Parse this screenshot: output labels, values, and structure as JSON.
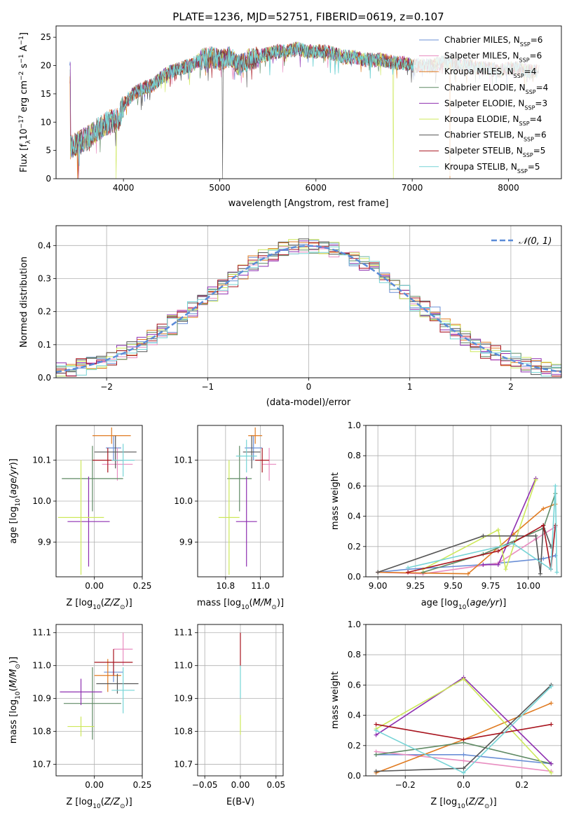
{
  "title": "PLATE=1236, MJD=52751, FIBERID=0619, z=0.107",
  "series": [
    {
      "name": "Chabrier MILES",
      "nssp": "6",
      "color": "#6a8fd6"
    },
    {
      "name": "Salpeter MILES",
      "nssp": "6",
      "color": "#e88cc0"
    },
    {
      "name": "Kroupa MILES",
      "nssp": "4",
      "color": "#e07b22"
    },
    {
      "name": "Chabrier ELODIE",
      "nssp": "4",
      "color": "#5f8a64"
    },
    {
      "name": "Salpeter ELODIE",
      "nssp": "3",
      "color": "#8e2fb0"
    },
    {
      "name": "Kroupa ELODIE",
      "nssp": "4",
      "color": "#cde85a"
    },
    {
      "name": "Chabrier STELIB",
      "nssp": "6",
      "color": "#555555"
    },
    {
      "name": "Salpeter STELIB",
      "nssp": "5",
      "color": "#a8141e"
    },
    {
      "name": "Kroupa STELIB",
      "nssp": "5",
      "color": "#76d4d6"
    }
  ],
  "chart_data": [
    {
      "id": "spectrum",
      "type": "line",
      "xlabel": "wavelength [Angstrom, rest frame]",
      "ylabel": "Flux [f_λ 10^-17 erg cm^-2 s^-1 A^-1]",
      "xlim": [
        3300,
        8550
      ],
      "ylim": [
        0,
        27
      ],
      "xticks": [
        4000,
        5000,
        6000,
        7000,
        8000
      ],
      "yticks": [
        0,
        5,
        10,
        15,
        20,
        25
      ],
      "x": [
        3450,
        3550,
        3650,
        3750,
        3850,
        3950,
        4000,
        4100,
        4200,
        4300,
        4400,
        4500,
        4600,
        4700,
        4800,
        4900,
        5000,
        5100,
        5200,
        5300,
        5400,
        5500,
        5600,
        5700,
        5800,
        5900,
        6000,
        6100,
        6200,
        6300,
        6400,
        6500,
        6600,
        6700,
        6800,
        6900,
        7000,
        7100,
        7200,
        7300,
        7400,
        7500,
        7600,
        7700,
        7800,
        7900,
        8000,
        8100,
        8200,
        8300
      ],
      "y": [
        5.5,
        6.5,
        7.5,
        9,
        10,
        10.5,
        13,
        15,
        16,
        16.5,
        18,
        19,
        19.5,
        20,
        21,
        21.5,
        21,
        21.5,
        20,
        21,
        21.5,
        22,
        22.5,
        22.5,
        23,
        22.5,
        22.5,
        22.5,
        22,
        21.5,
        21.5,
        21,
        21,
        21,
        20.5,
        20.5,
        20,
        20,
        20,
        20.5,
        20.5,
        20,
        20,
        19.5,
        19.5,
        19,
        19.5,
        19.5,
        19,
        19
      ],
      "grid": false,
      "legend": "top-right"
    },
    {
      "id": "residual_hist",
      "type": "bar",
      "xlabel": "(data-model)/error",
      "ylabel": "Normed distribution",
      "xlim": [
        -2.5,
        2.5
      ],
      "ylim": [
        0,
        0.46
      ],
      "xticks": [
        -2,
        -1,
        0,
        1,
        2
      ],
      "yticks": [
        0.0,
        0.1,
        0.2,
        0.3,
        0.4
      ],
      "bin_width": 0.1,
      "bin_start": -2.5,
      "normal_curve": {
        "label": "𝒩(0, 1)",
        "mean": 0,
        "sigma": 1,
        "color": "#5b8bd8"
      },
      "grid": true,
      "legend": "top-right"
    },
    {
      "id": "age_vs_Z",
      "type": "scatter",
      "xlabel": "Z [log10(Z/Z⊙)]",
      "ylabel": "age  [log10(age/yr)]",
      "xlim": [
        -0.2,
        0.25
      ],
      "ylim": [
        9.815,
        10.185
      ],
      "xticks": [
        0.0,
        0.25
      ],
      "yticks": [
        9.9,
        10.0,
        10.1
      ],
      "points": [
        {
          "x": 0.1,
          "y": 10.13,
          "xerr": 0.04,
          "yerr": 0.03
        },
        {
          "x": 0.12,
          "y": 10.09,
          "xerr": 0.08,
          "yerr": 0.04
        },
        {
          "x": 0.09,
          "y": 10.16,
          "xerr": 0.1,
          "yerr": 0.02
        },
        {
          "x": -0.01,
          "y": 10.055,
          "xerr": 0.16,
          "yerr": 0.08
        },
        {
          "x": -0.03,
          "y": 9.95,
          "xerr": 0.11,
          "yerr": 0.11
        },
        {
          "x": -0.07,
          "y": 9.96,
          "xerr": 0.12,
          "yerr": 0.14
        },
        {
          "x": 0.11,
          "y": 10.12,
          "xerr": 0.11,
          "yerr": 0.04
        },
        {
          "x": 0.07,
          "y": 10.1,
          "xerr": 0.08,
          "yerr": 0.03
        },
        {
          "x": 0.15,
          "y": 10.1,
          "xerr": 0.06,
          "yerr": 0.04
        }
      ],
      "grid": true
    },
    {
      "id": "age_vs_mass",
      "type": "scatter",
      "xlabel": "mass [log10(M/M⊙)]",
      "ylabel": "",
      "xlim": [
        10.64,
        11.13
      ],
      "ylim": [
        9.815,
        10.185
      ],
      "xticks": [
        10.8,
        11.0
      ],
      "yticks": [
        9.9,
        10.0,
        10.1
      ],
      "points": [
        {
          "x": 10.96,
          "y": 10.13,
          "xerr": 0.05,
          "yerr": 0.03
        },
        {
          "x": 11.05,
          "y": 10.09,
          "xerr": 0.04,
          "yerr": 0.04
        },
        {
          "x": 10.97,
          "y": 10.16,
          "xerr": 0.04,
          "yerr": 0.02
        },
        {
          "x": 10.88,
          "y": 10.055,
          "xerr": 0.07,
          "yerr": 0.08
        },
        {
          "x": 10.92,
          "y": 9.95,
          "xerr": 0.06,
          "yerr": 0.11
        },
        {
          "x": 10.82,
          "y": 9.96,
          "xerr": 0.06,
          "yerr": 0.14
        },
        {
          "x": 10.95,
          "y": 10.12,
          "xerr": 0.05,
          "yerr": 0.04
        },
        {
          "x": 11.01,
          "y": 10.1,
          "xerr": 0.04,
          "yerr": 0.03
        },
        {
          "x": 10.92,
          "y": 10.11,
          "xerr": 0.06,
          "yerr": 0.04
        }
      ],
      "grid": true
    },
    {
      "id": "weight_vs_age",
      "type": "line",
      "xlabel": "age  [log10(age/yr)]",
      "ylabel": "mass weight",
      "xlim": [
        8.92,
        10.22
      ],
      "ylim": [
        0,
        1
      ],
      "xticks": [
        9.0,
        9.25,
        9.5,
        9.75,
        10.0
      ],
      "yticks": [
        0.0,
        0.2,
        0.4,
        0.6,
        0.8,
        1.0
      ],
      "lines": [
        {
          "x": [
            9.0,
            9.2,
            9.7,
            10.1,
            10.18
          ],
          "y": [
            0.03,
            0.05,
            0.08,
            0.12,
            0.14
          ]
        },
        {
          "x": [
            9.0,
            9.3,
            9.8,
            10.05,
            10.18
          ],
          "y": [
            0.03,
            0.02,
            0.09,
            0.25,
            0.33
          ]
        },
        {
          "x": [
            9.0,
            9.6,
            9.9,
            10.1,
            10.18
          ],
          "y": [
            0.03,
            0.02,
            0.28,
            0.45,
            0.48
          ]
        },
        {
          "x": [
            9.3,
            9.7,
            10.1,
            10.18
          ],
          "y": [
            0.03,
            0.15,
            0.32,
            0.55
          ]
        },
        {
          "x": [
            9.7,
            9.8,
            10.05
          ],
          "y": [
            0.08,
            0.08,
            0.65
          ]
        },
        {
          "x": [
            9.3,
            9.8,
            9.85,
            10.05
          ],
          "y": [
            0.05,
            0.31,
            0.05,
            0.64
          ]
        },
        {
          "x": [
            9.0,
            9.7,
            10.05,
            10.08,
            10.1,
            10.15
          ],
          "y": [
            0.03,
            0.27,
            0.27,
            0.02,
            0.34,
            0.2
          ]
        },
        {
          "x": [
            9.2,
            9.8,
            10.1,
            10.15,
            10.18
          ],
          "y": [
            0.03,
            0.17,
            0.34,
            0.05,
            0.34
          ]
        },
        {
          "x": [
            9.2,
            9.9,
            10.15,
            10.18,
            10.19
          ],
          "y": [
            0.06,
            0.22,
            0.05,
            0.6,
            0.03
          ]
        }
      ],
      "grid": true
    },
    {
      "id": "mass_vs_Z",
      "type": "scatter",
      "xlabel": "Z [log10(Z/Z⊙)]",
      "ylabel": "mass [log10(M/M⊙)]",
      "xlim": [
        -0.2,
        0.25
      ],
      "ylim": [
        10.665,
        11.125
      ],
      "xticks": [
        0.0,
        0.25
      ],
      "yticks": [
        10.7,
        10.8,
        10.9,
        11.0,
        11.1
      ],
      "points": [
        {
          "x": 0.1,
          "y": 10.98,
          "xerr": 0.05,
          "yerr": 0.03
        },
        {
          "x": 0.15,
          "y": 11.05,
          "xerr": 0.05,
          "yerr": 0.05
        },
        {
          "x": 0.07,
          "y": 10.97,
          "xerr": 0.07,
          "yerr": 0.05
        },
        {
          "x": -0.01,
          "y": 10.885,
          "xerr": 0.15,
          "yerr": 0.11
        },
        {
          "x": -0.07,
          "y": 10.92,
          "xerr": 0.11,
          "yerr": 0.04
        },
        {
          "x": -0.07,
          "y": 10.815,
          "xerr": 0.07,
          "yerr": 0.03
        },
        {
          "x": 0.12,
          "y": 10.945,
          "xerr": 0.11,
          "yerr": 0.03
        },
        {
          "x": 0.1,
          "y": 11.01,
          "xerr": 0.1,
          "yerr": 0.04
        },
        {
          "x": 0.15,
          "y": 10.925,
          "xerr": 0.06,
          "yerr": 0.07
        }
      ],
      "grid": true
    },
    {
      "id": "mass_vs_EBV",
      "type": "scatter",
      "xlabel": "E(B-V)",
      "ylabel": "",
      "xlim": [
        -0.06,
        0.06
      ],
      "ylim": [
        10.665,
        11.125
      ],
      "xticks": [
        -0.05,
        0.0,
        0.05
      ],
      "yticks": [
        10.7,
        10.8,
        10.9,
        11.0,
        11.1
      ],
      "points": [
        {
          "x": 0.0,
          "y": 11.05,
          "xerr": 0,
          "yerr": 0.05
        },
        {
          "x": 0.0,
          "y": 10.95,
          "xerr": 0,
          "yerr": 0.05
        },
        {
          "x": 0.0,
          "y": 10.82,
          "xerr": 0,
          "yerr": 0.03
        }
      ],
      "grid": true
    },
    {
      "id": "weight_vs_Z",
      "type": "line",
      "xlabel": "Z [log10(Z/Z⊙)]",
      "ylabel": "mass weight",
      "xlim": [
        -0.335,
        0.335
      ],
      "ylim": [
        0,
        1
      ],
      "xticks": [
        -0.2,
        0.0,
        0.2
      ],
      "yticks": [
        0.0,
        0.2,
        0.4,
        0.6,
        0.8,
        1.0
      ],
      "lines": [
        {
          "x": [
            -0.3,
            0.0,
            0.3
          ],
          "y": [
            0.14,
            0.14,
            0.08
          ]
        },
        {
          "x": [
            -0.3,
            0.0,
            0.3
          ],
          "y": [
            0.16,
            0.1,
            0.03
          ]
        },
        {
          "x": [
            -0.3,
            0.0,
            0.3
          ],
          "y": [
            0.02,
            0.24,
            0.48
          ]
        },
        {
          "x": [
            -0.3,
            0.0,
            0.3
          ],
          "y": [
            0.14,
            0.22,
            0.08
          ]
        },
        {
          "x": [
            -0.3,
            0.0,
            0.3
          ],
          "y": [
            0.27,
            0.65,
            0.08
          ]
        },
        {
          "x": [
            -0.3,
            0.0,
            0.3
          ],
          "y": [
            0.31,
            0.64,
            0.02
          ]
        },
        {
          "x": [
            -0.3,
            0.0,
            0.3
          ],
          "y": [
            0.03,
            0.05,
            0.6
          ]
        },
        {
          "x": [
            -0.3,
            0.0,
            0.3
          ],
          "y": [
            0.34,
            0.24,
            0.34
          ]
        },
        {
          "x": [
            -0.3,
            0.0,
            0.3
          ],
          "y": [
            0.3,
            0.02,
            0.59
          ]
        }
      ],
      "grid": true
    }
  ]
}
